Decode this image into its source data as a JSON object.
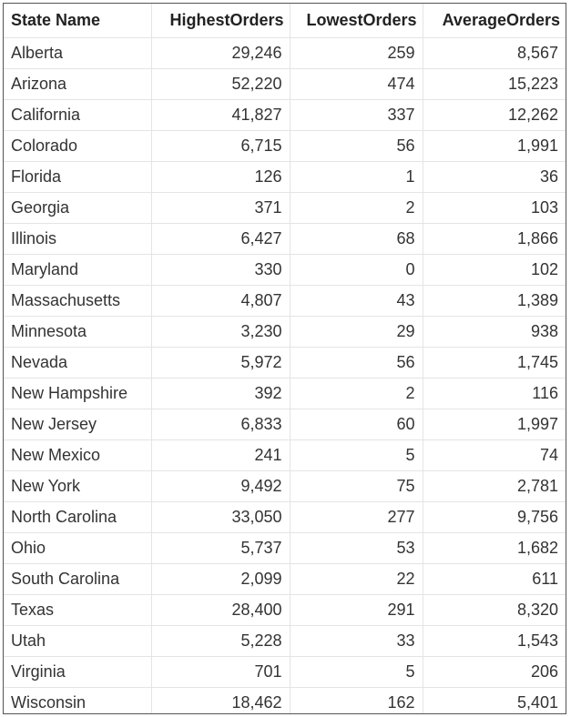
{
  "table": {
    "columns": [
      "State Name",
      "HighestOrders",
      "LowestOrders",
      "AverageOrders"
    ],
    "rows": [
      [
        "Alberta",
        "29,246",
        "259",
        "8,567"
      ],
      [
        "Arizona",
        "52,220",
        "474",
        "15,223"
      ],
      [
        "California",
        "41,827",
        "337",
        "12,262"
      ],
      [
        "Colorado",
        "6,715",
        "56",
        "1,991"
      ],
      [
        "Florida",
        "126",
        "1",
        "36"
      ],
      [
        "Georgia",
        "371",
        "2",
        "103"
      ],
      [
        "Illinois",
        "6,427",
        "68",
        "1,866"
      ],
      [
        "Maryland",
        "330",
        "0",
        "102"
      ],
      [
        "Massachusetts",
        "4,807",
        "43",
        "1,389"
      ],
      [
        "Minnesota",
        "3,230",
        "29",
        "938"
      ],
      [
        "Nevada",
        "5,972",
        "56",
        "1,745"
      ],
      [
        "New Hampshire",
        "392",
        "2",
        "116"
      ],
      [
        "New Jersey",
        "6,833",
        "60",
        "1,997"
      ],
      [
        "New Mexico",
        "241",
        "5",
        "74"
      ],
      [
        "New York",
        "9,492",
        "75",
        "2,781"
      ],
      [
        "North Carolina",
        "33,050",
        "277",
        "9,756"
      ],
      [
        "Ohio",
        "5,737",
        "53",
        "1,682"
      ],
      [
        "South Carolina",
        "2,099",
        "22",
        "611"
      ],
      [
        "Texas",
        "28,400",
        "291",
        "8,320"
      ],
      [
        "Utah",
        "5,228",
        "33",
        "1,543"
      ],
      [
        "Virginia",
        "701",
        "5",
        "206"
      ],
      [
        "Wisconsin",
        "18,462",
        "162",
        "5,401"
      ]
    ]
  }
}
